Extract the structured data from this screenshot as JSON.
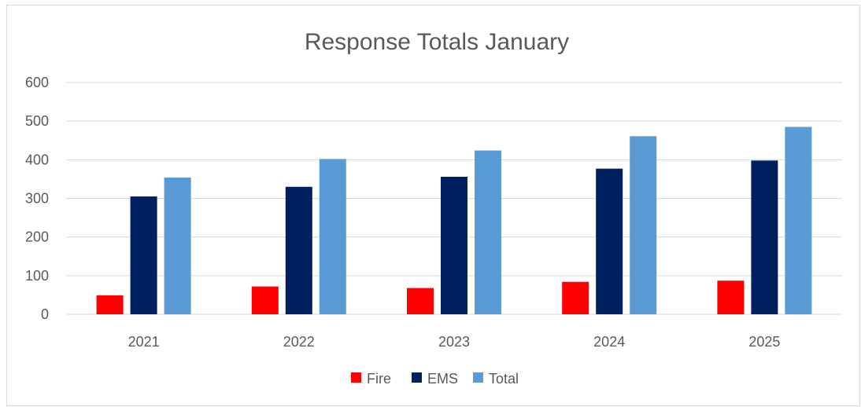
{
  "chart_data": {
    "type": "bar",
    "title": "Response Totals January",
    "xlabel": "",
    "ylabel": "",
    "categories": [
      "2021",
      "2022",
      "2023",
      "2024",
      "2025"
    ],
    "ylim": [
      0,
      600
    ],
    "yticks": [
      0,
      100,
      200,
      300,
      400,
      500,
      600
    ],
    "grid": true,
    "legend_position": "bottom",
    "series": [
      {
        "name": "Fire",
        "color": "#ff0000",
        "values": [
          49,
          72,
          68,
          84,
          87
        ]
      },
      {
        "name": "EMS",
        "color": "#002060",
        "values": [
          305,
          330,
          356,
          377,
          398
        ]
      },
      {
        "name": "Total",
        "color": "#5b9bd5",
        "values": [
          354,
          402,
          424,
          461,
          485
        ]
      }
    ]
  }
}
